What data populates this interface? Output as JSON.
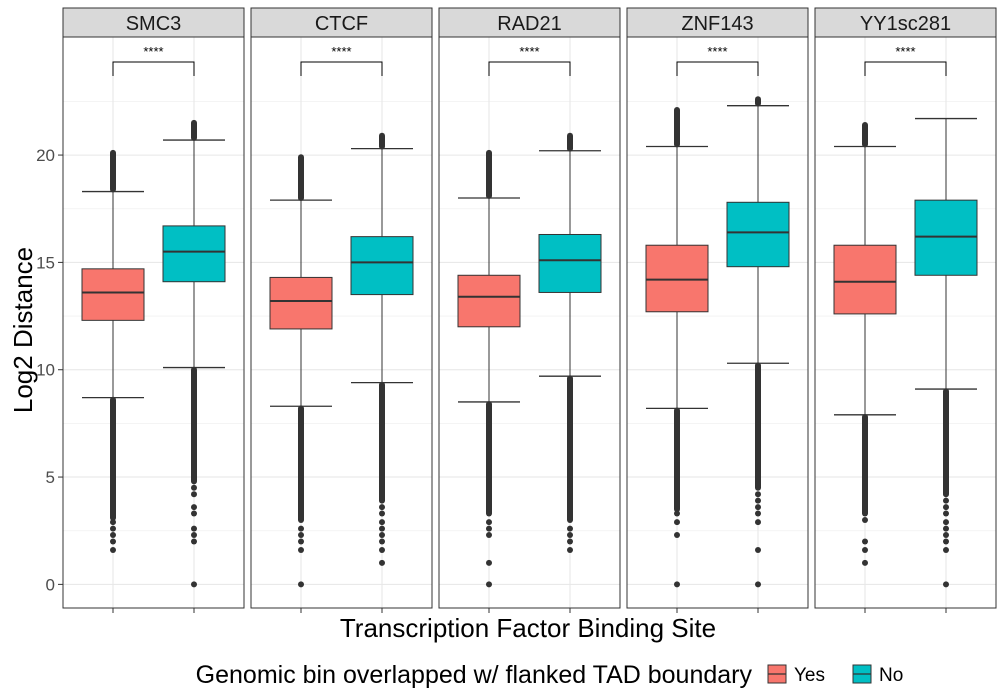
{
  "chart_data": {
    "type": "boxplot",
    "facets": [
      "SMC3",
      "CTCF",
      "RAD21",
      "ZNF143",
      "YY1sc281"
    ],
    "xlabel": "Transcription Factor Binding Site",
    "ylabel": "Log2 Distance",
    "ylim": [
      -1.1,
      25.5
    ],
    "yticks": [
      0,
      5,
      10,
      15,
      20
    ],
    "grid": true,
    "legend": {
      "title": "Genomic bin overlapped w/ flanked TAD boundary",
      "position": "bottom",
      "entries": [
        {
          "label": "Yes",
          "color": "#F8766D"
        },
        {
          "label": "No",
          "color": "#00BFC4"
        }
      ]
    },
    "significance": "****",
    "panels": [
      {
        "facet": "SMC3",
        "groups": [
          {
            "name": "Yes",
            "q1": 12.3,
            "median": 13.6,
            "q3": 14.7,
            "whisker_low": 8.7,
            "whisker_high": 18.3,
            "outliers_low_range": [
              3.1,
              8.6
            ],
            "outliers_low_dots": [
              2.9,
              2.6,
              2.3,
              2.0,
              1.6
            ],
            "outliers_high_range": [
              18.4,
              20.1
            ]
          },
          {
            "name": "No",
            "q1": 14.1,
            "median": 15.5,
            "q3": 16.7,
            "whisker_low": 10.1,
            "whisker_high": 20.7,
            "outliers_low_range": [
              4.8,
              10.0
            ],
            "outliers_low_dots": [
              4.5,
              4.2,
              3.6,
              3.3,
              2.6,
              2.3,
              2.0,
              0.0
            ],
            "outliers_high_range": [
              20.8,
              21.5
            ]
          }
        ]
      },
      {
        "facet": "CTCF",
        "groups": [
          {
            "name": "Yes",
            "q1": 11.9,
            "median": 13.2,
            "q3": 14.3,
            "whisker_low": 8.3,
            "whisker_high": 17.9,
            "outliers_low_range": [
              3.0,
              8.2
            ],
            "outliers_low_dots": [
              2.6,
              2.3,
              2.0,
              1.6,
              0.0
            ],
            "outliers_high_range": [
              18.0,
              19.9
            ]
          },
          {
            "name": "No",
            "q1": 13.5,
            "median": 15.0,
            "q3": 16.2,
            "whisker_low": 9.4,
            "whisker_high": 20.3,
            "outliers_low_range": [
              3.9,
              9.3
            ],
            "outliers_low_dots": [
              3.6,
              3.3,
              2.9,
              2.6,
              2.3,
              2.0,
              1.6,
              1.0
            ],
            "outliers_high_range": [
              20.4,
              20.9
            ]
          }
        ]
      },
      {
        "facet": "RAD21",
        "groups": [
          {
            "name": "Yes",
            "q1": 12.0,
            "median": 13.4,
            "q3": 14.4,
            "whisker_low": 8.5,
            "whisker_high": 18.0,
            "outliers_low_range": [
              3.3,
              8.4
            ],
            "outliers_low_dots": [
              2.9,
              2.6,
              2.3,
              1.0,
              0.0
            ],
            "outliers_high_range": [
              18.1,
              20.1
            ]
          },
          {
            "name": "No",
            "q1": 13.6,
            "median": 15.1,
            "q3": 16.3,
            "whisker_low": 9.7,
            "whisker_high": 20.2,
            "outliers_low_range": [
              3.0,
              9.6
            ],
            "outliers_low_dots": [
              2.6,
              2.3,
              2.0,
              1.6
            ],
            "outliers_high_range": [
              20.3,
              20.9
            ]
          }
        ]
      },
      {
        "facet": "ZNF143",
        "groups": [
          {
            "name": "Yes",
            "q1": 12.7,
            "median": 14.2,
            "q3": 15.8,
            "whisker_low": 8.2,
            "whisker_high": 20.4,
            "outliers_low_range": [
              3.5,
              8.1
            ],
            "outliers_low_dots": [
              3.3,
              2.9,
              2.3,
              0.0
            ],
            "outliers_high_range": [
              20.5,
              22.1
            ]
          },
          {
            "name": "No",
            "q1": 14.8,
            "median": 16.4,
            "q3": 17.8,
            "whisker_low": 10.3,
            "whisker_high": 22.3,
            "outliers_low_range": [
              4.5,
              10.2
            ],
            "outliers_low_dots": [
              4.2,
              3.9,
              3.6,
              3.3,
              2.9,
              1.6,
              0.0
            ],
            "outliers_high_range": [
              22.4,
              22.6
            ]
          }
        ]
      },
      {
        "facet": "YY1sc281",
        "groups": [
          {
            "name": "Yes",
            "q1": 12.6,
            "median": 14.1,
            "q3": 15.8,
            "whisker_low": 7.9,
            "whisker_high": 20.4,
            "outliers_low_range": [
              3.3,
              7.8
            ],
            "outliers_low_dots": [
              3.0,
              2.0,
              1.6,
              1.0
            ],
            "outliers_high_range": [
              20.5,
              21.4
            ]
          },
          {
            "name": "No",
            "q1": 14.4,
            "median": 16.2,
            "q3": 17.9,
            "whisker_low": 9.1,
            "whisker_high": 21.7,
            "outliers_low_range": [
              4.2,
              9.0
            ],
            "outliers_low_dots": [
              3.9,
              3.6,
              3.3,
              2.9,
              2.6,
              2.3,
              2.0,
              1.6,
              0.0
            ],
            "outliers_high_range": []
          }
        ]
      }
    ]
  }
}
